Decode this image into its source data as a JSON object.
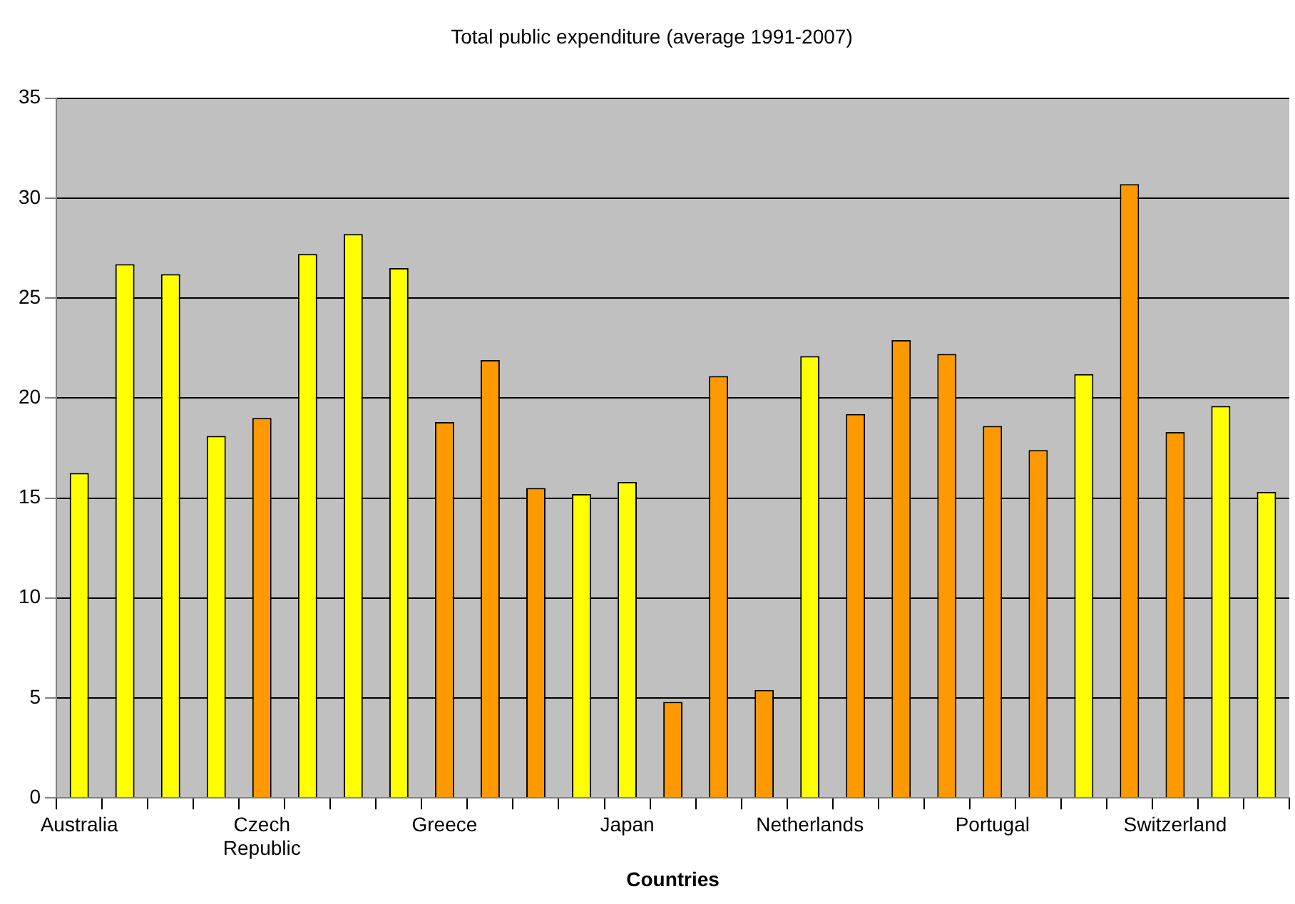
{
  "chart_data": {
    "type": "bar",
    "title": "Total public expenditure (average 1991-2007)",
    "xlabel": "Countries",
    "categories": [
      "Australia",
      null,
      null,
      null,
      "Czech Republic",
      null,
      null,
      null,
      "Greece",
      null,
      null,
      null,
      "Japan",
      null,
      null,
      null,
      "Netherlands",
      null,
      null,
      null,
      "Portugal",
      null,
      null,
      null,
      "Switzerland",
      null,
      null
    ],
    "values": [
      16.25,
      26.7,
      26.2,
      18.1,
      19.0,
      27.2,
      28.2,
      26.5,
      18.8,
      21.9,
      15.5,
      15.2,
      15.8,
      4.8,
      21.1,
      5.4,
      22.1,
      19.2,
      22.9,
      22.2,
      18.6,
      17.4,
      21.2,
      30.7,
      18.3,
      19.6,
      15.3
    ],
    "colors": [
      "#ffff00",
      "#ffff00",
      "#ffff00",
      "#ffff00",
      "#ff9900",
      "#ffff00",
      "#ffff00",
      "#ffff00",
      "#ff9900",
      "#ff9900",
      "#ff9900",
      "#ffff00",
      "#ffff00",
      "#ff9900",
      "#ff9900",
      "#ff9900",
      "#ffff00",
      "#ff9900",
      "#ff9900",
      "#ff9900",
      "#ff9900",
      "#ff9900",
      "#ffff00",
      "#ff9900",
      "#ff9900",
      "#ffff00",
      "#ffff00"
    ],
    "ylim": [
      0,
      35
    ],
    "yticks": [
      0,
      5,
      10,
      15,
      20,
      25,
      30,
      35
    ],
    "grid": "y"
  }
}
